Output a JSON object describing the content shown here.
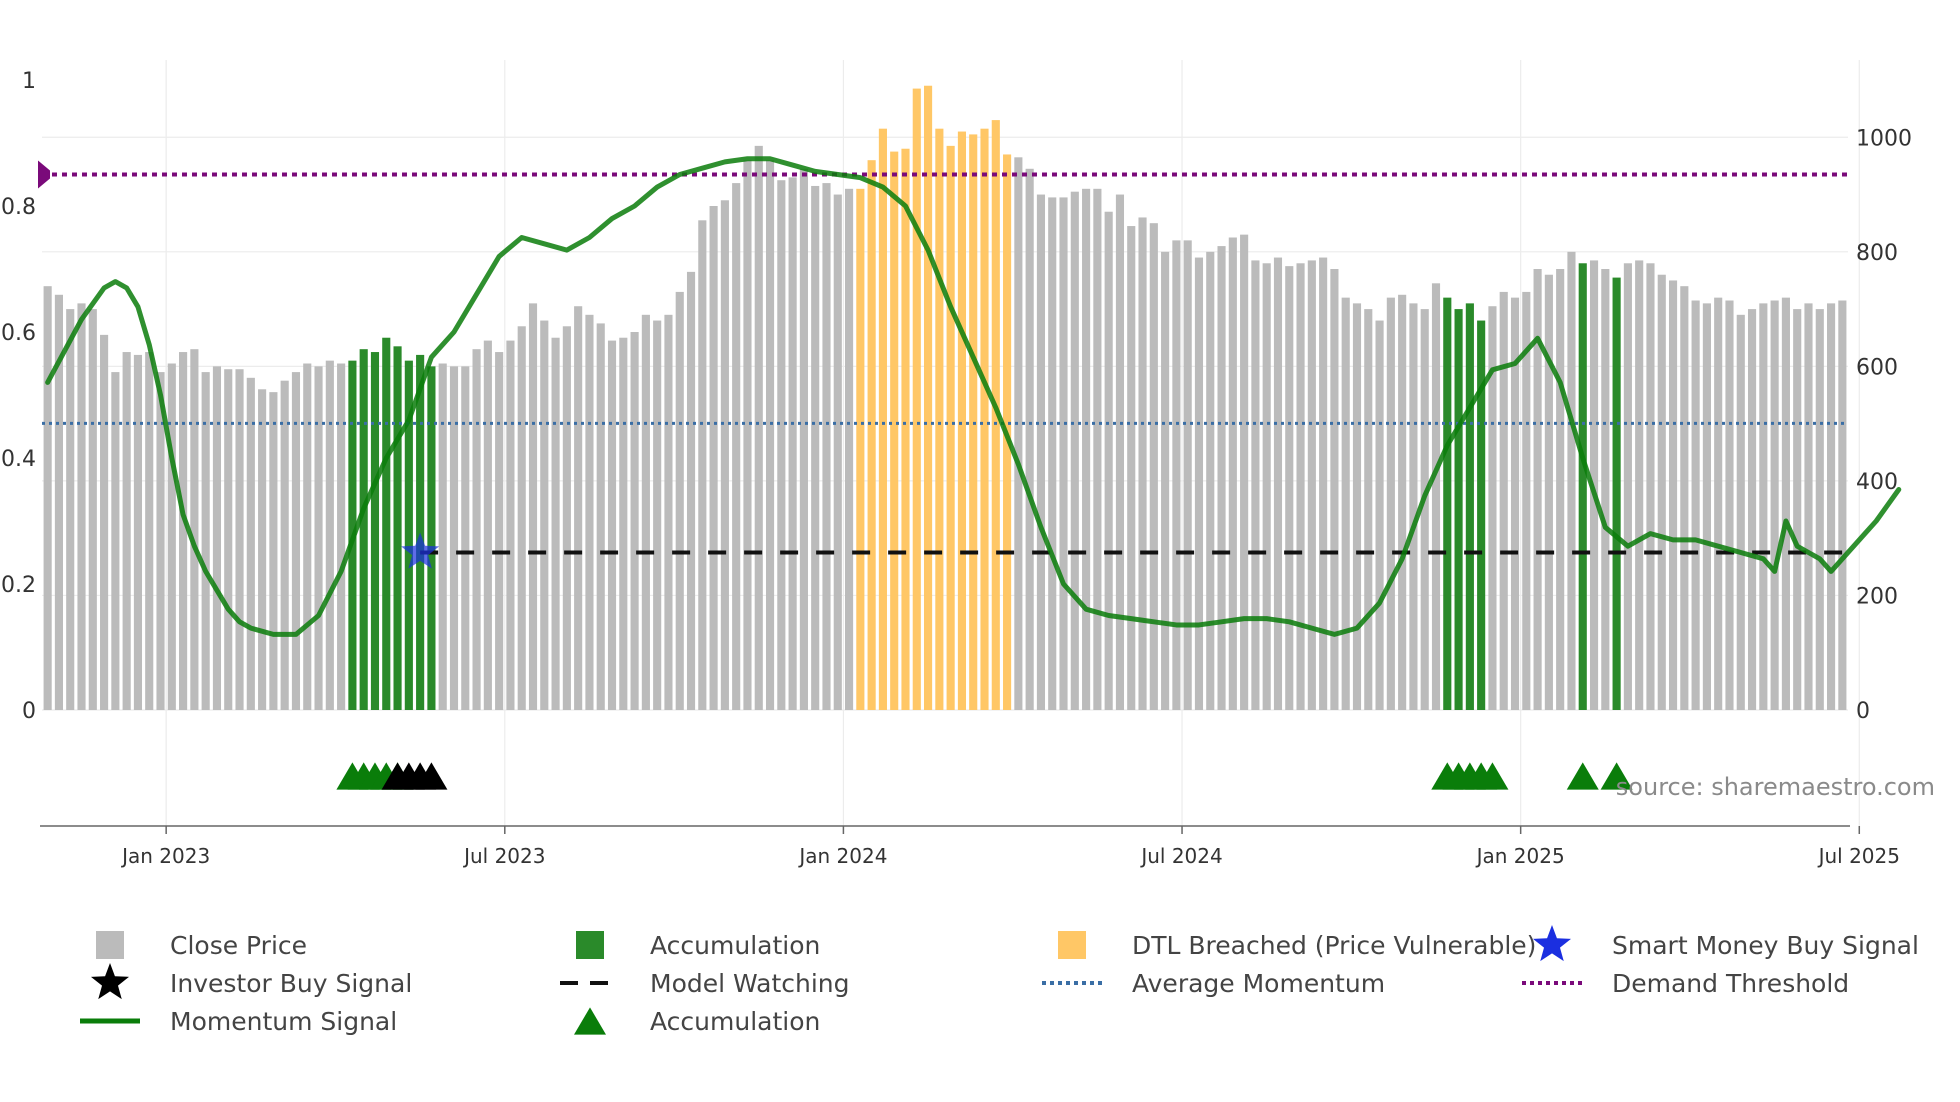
{
  "chart_data": {
    "type": "bar",
    "source_text": "source: sharemaestro.com",
    "left_axis": {
      "ylim": [
        0,
        1
      ],
      "ticks": [
        "0",
        "0.2",
        "0.4",
        "0.6",
        "0.8",
        "1"
      ]
    },
    "right_axis": {
      "ylim": [
        0,
        1100
      ],
      "ticks": [
        "0",
        "200",
        "400",
        "600",
        "800",
        "1000"
      ]
    },
    "x_ticks": [
      "Jan 2023",
      "Jul 2023",
      "Jan 2024",
      "Jul 2024",
      "Jan 2025",
      "Jul 2025"
    ],
    "series": [
      {
        "name": "Close Price",
        "axis": "right",
        "values": [
          740,
          725,
          700,
          710,
          700,
          655,
          590,
          625,
          620,
          625,
          590,
          605,
          625,
          630,
          590,
          600,
          595,
          595,
          580,
          560,
          555,
          575,
          590,
          605,
          600,
          610,
          605,
          610,
          630,
          625,
          650,
          635,
          610,
          620,
          600,
          605,
          600,
          600,
          630,
          645,
          625,
          645,
          670,
          710,
          680,
          650,
          670,
          705,
          690,
          675,
          645,
          650,
          660,
          690,
          680,
          690,
          730,
          765,
          855,
          880,
          890,
          920,
          960,
          985,
          960,
          925,
          930,
          945,
          915,
          920,
          900,
          910,
          910,
          960,
          1015,
          975,
          980,
          1085,
          1090,
          1015,
          985,
          1010,
          1005,
          1015,
          1030,
          970,
          965,
          945,
          900,
          895,
          895,
          905,
          910,
          910,
          870,
          900,
          845,
          860,
          850,
          800,
          820,
          820,
          790,
          800,
          810,
          825,
          830,
          785,
          780,
          790,
          775,
          780,
          785,
          790,
          770,
          720,
          710,
          700,
          680,
          720,
          725,
          710,
          700,
          745,
          720,
          700,
          710,
          680,
          705,
          730,
          720,
          730,
          770,
          760,
          770,
          800,
          780,
          785,
          770,
          755,
          780,
          785,
          780,
          760,
          750,
          740,
          715,
          710,
          720,
          715,
          690,
          700,
          710,
          715,
          720,
          700,
          710,
          700,
          710,
          715
        ],
        "color": "#bbbbbb"
      },
      {
        "name": "Accumulation",
        "kind": "bar_highlight",
        "indices": [
          27,
          28,
          29,
          30,
          31,
          32,
          33,
          34,
          124,
          125,
          126,
          127,
          136,
          139
        ],
        "color": "#2a8a2a"
      },
      {
        "name": "DTL Breached (Price Vulnerable)",
        "kind": "bar_highlight",
        "indices": [
          72,
          73,
          74,
          75,
          76,
          77,
          78,
          79,
          80,
          81,
          82,
          83,
          84,
          85
        ],
        "color": "#ffc766"
      },
      {
        "name": "Momentum Signal",
        "axis": "left",
        "x": [
          0,
          3,
          5,
          6,
          7,
          8,
          9,
          10,
          11,
          12,
          13,
          14,
          15,
          16,
          17,
          18,
          20,
          22,
          24,
          26,
          28,
          30,
          32,
          33,
          34,
          36,
          38,
          40,
          42,
          44,
          46,
          48,
          50,
          52,
          54,
          56,
          58,
          60,
          62,
          64,
          66,
          68,
          70,
          72,
          74,
          76,
          78,
          80,
          82,
          84,
          86,
          88,
          90,
          92,
          94,
          96,
          98,
          100,
          102,
          104,
          106,
          108,
          110,
          112,
          114,
          116,
          118,
          120,
          122,
          124,
          126,
          128,
          130,
          132,
          134,
          136,
          138,
          140,
          142,
          144,
          146,
          148,
          150,
          152,
          153,
          154,
          155,
          156,
          157,
          158,
          160,
          161,
          162,
          164
        ],
        "values": [
          0.52,
          0.62,
          0.67,
          0.68,
          0.67,
          0.64,
          0.58,
          0.5,
          0.4,
          0.31,
          0.26,
          0.22,
          0.19,
          0.16,
          0.14,
          0.13,
          0.12,
          0.12,
          0.15,
          0.22,
          0.32,
          0.4,
          0.46,
          0.51,
          0.56,
          0.6,
          0.66,
          0.72,
          0.75,
          0.74,
          0.73,
          0.75,
          0.78,
          0.8,
          0.83,
          0.85,
          0.86,
          0.87,
          0.875,
          0.875,
          0.865,
          0.855,
          0.85,
          0.845,
          0.83,
          0.8,
          0.73,
          0.64,
          0.56,
          0.48,
          0.39,
          0.29,
          0.2,
          0.16,
          0.15,
          0.145,
          0.14,
          0.135,
          0.135,
          0.14,
          0.145,
          0.145,
          0.14,
          0.13,
          0.12,
          0.13,
          0.17,
          0.24,
          0.34,
          0.42,
          0.48,
          0.54,
          0.55,
          0.59,
          0.52,
          0.4,
          0.29,
          0.26,
          0.28,
          0.27,
          0.27,
          0.26,
          0.25,
          0.24,
          0.22,
          0.3,
          0.26,
          0.25,
          0.24,
          0.22,
          0.26,
          0.28,
          0.3,
          0.35
        ],
        "color": "#0a7d0a"
      },
      {
        "name": "Model Watching",
        "axis": "left",
        "value": 0.25,
        "x_start_index": 33,
        "color": "#111111"
      },
      {
        "name": "Average Momentum",
        "axis": "left",
        "value": 0.455,
        "color": "#3a6ea5"
      },
      {
        "name": "Demand Threshold",
        "axis": "left",
        "value": 0.85,
        "color": "#7a0a7a"
      },
      {
        "name": "Smart Money Buy Signal",
        "indices": [
          33
        ],
        "axis": "left",
        "value": 0.25,
        "color": "#1b2fe0"
      },
      {
        "name": "Accumulation",
        "kind": "marker_lane",
        "indices": [
          27,
          28,
          29,
          30,
          31,
          124,
          125,
          126,
          127,
          128,
          136,
          139
        ],
        "color": "#0a7d0a"
      },
      {
        "name": "Investor Buy Signal",
        "kind": "marker_lane",
        "indices": [
          31,
          32,
          33,
          34
        ],
        "color": "#000000"
      }
    ],
    "legend": [
      {
        "label": "Close Price",
        "symbol": "square",
        "color": "#bbbbbb"
      },
      {
        "label": "Accumulation",
        "symbol": "square",
        "color": "#2a8a2a"
      },
      {
        "label": "DTL Breached (Price Vulnerable)",
        "symbol": "square",
        "color": "#ffc766"
      },
      {
        "label": "Smart Money Buy Signal",
        "symbol": "star",
        "color": "#1b2fe0"
      },
      {
        "label": "Investor Buy Signal",
        "symbol": "star",
        "color": "#000000"
      },
      {
        "label": "Model Watching",
        "symbol": "dash",
        "color": "#111111"
      },
      {
        "label": "Average Momentum",
        "symbol": "dot",
        "color": "#3a6ea5"
      },
      {
        "label": "Demand Threshold",
        "symbol": "dot",
        "color": "#7a0a7a"
      },
      {
        "label": "Momentum Signal",
        "symbol": "line",
        "color": "#0a7d0a"
      },
      {
        "label": "Accumulation",
        "symbol": "triangle",
        "color": "#0a7d0a"
      }
    ]
  }
}
